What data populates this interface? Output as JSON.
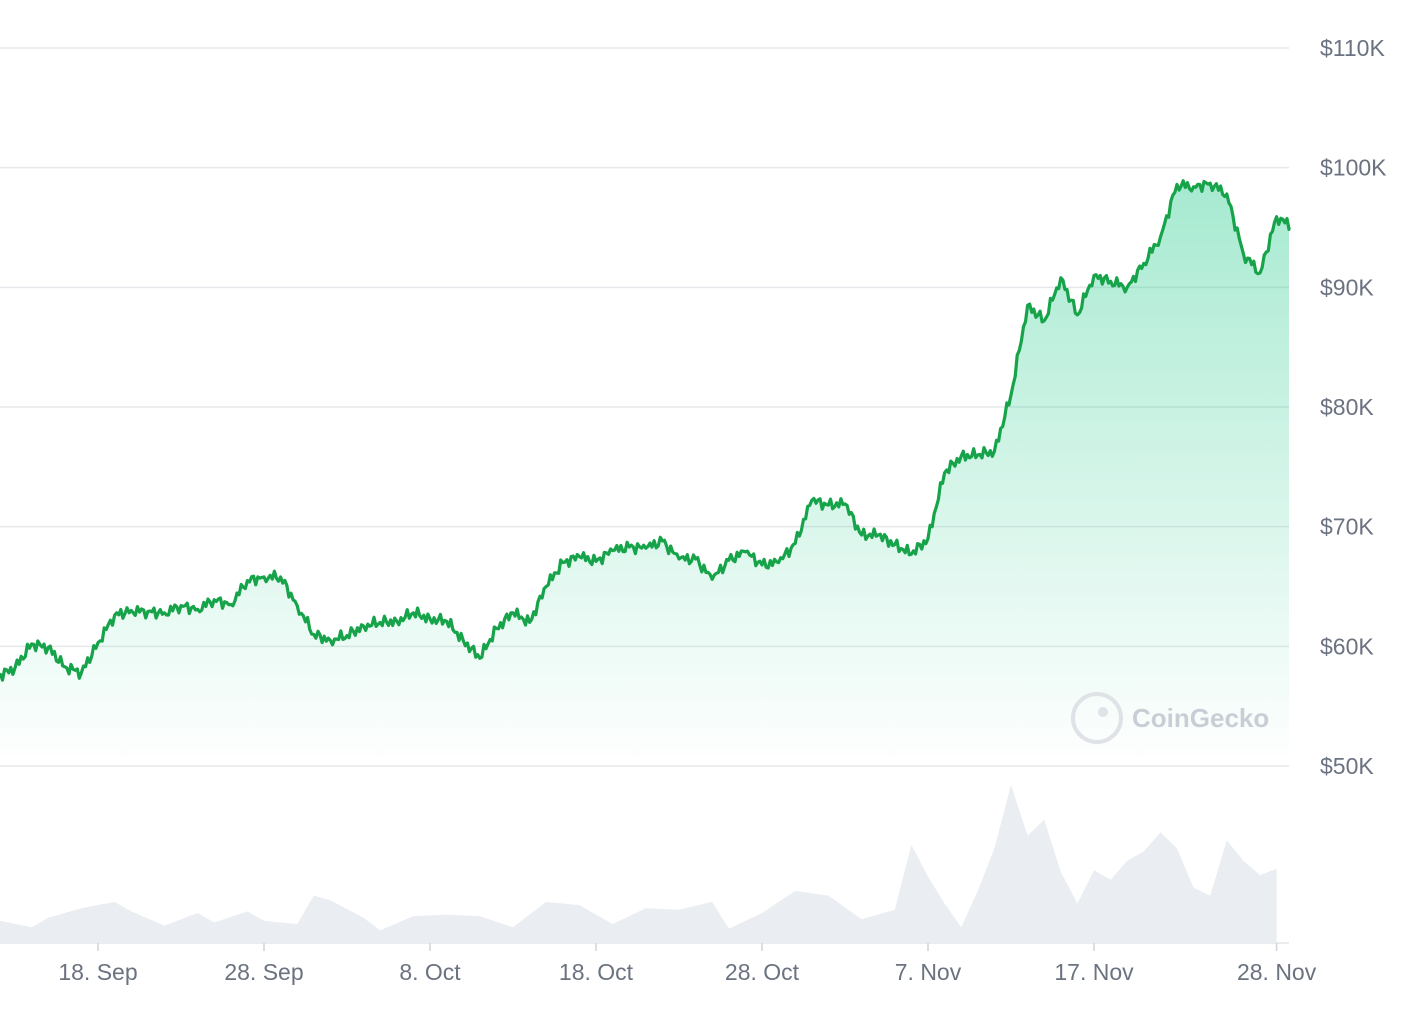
{
  "watermark": {
    "text": "CoinGecko"
  },
  "colors": {
    "line": "#16a34a",
    "area_top": "#16c784",
    "grid": "#e6e8eb",
    "volume": "#eaedf1",
    "tick_text": "#6b7280"
  },
  "chart_data": {
    "type": "line",
    "xlabel": "",
    "ylabel": "",
    "ylim": [
      50000,
      110000
    ],
    "y_ticks": [
      {
        "value": 110000,
        "label": "$110K"
      },
      {
        "value": 100000,
        "label": "$100K"
      },
      {
        "value": 90000,
        "label": "$90K"
      },
      {
        "value": 80000,
        "label": "$80K"
      },
      {
        "value": 70000,
        "label": "$70K"
      },
      {
        "value": 60000,
        "label": "$60K"
      },
      {
        "value": 50000,
        "label": "$50K"
      }
    ],
    "x_range": [
      "2024-09-12",
      "2024-11-28"
    ],
    "x_ticks": [
      {
        "date": "2024-09-18",
        "label": "18. Sep"
      },
      {
        "date": "2024-09-28",
        "label": "28. Sep"
      },
      {
        "date": "2024-10-08",
        "label": "8. Oct"
      },
      {
        "date": "2024-10-18",
        "label": "18. Oct"
      },
      {
        "date": "2024-10-28",
        "label": "28. Oct"
      },
      {
        "date": "2024-11-07",
        "label": "7. Nov"
      },
      {
        "date": "2024-11-17",
        "label": "17. Nov"
      },
      {
        "date": "2024-11-28",
        "label": "28. Nov"
      }
    ],
    "series": [
      {
        "points": [
          [
            "2024-09-12",
            57500
          ],
          [
            "2024-09-13",
            58200
          ],
          [
            "2024-09-14",
            60200
          ],
          [
            "2024-09-15",
            59900
          ],
          [
            "2024-09-16",
            58300
          ],
          [
            "2024-09-17",
            57800
          ],
          [
            "2024-09-18",
            60300
          ],
          [
            "2024-09-19",
            62600
          ],
          [
            "2024-09-20",
            63000
          ],
          [
            "2024-09-21",
            62900
          ],
          [
            "2024-09-22",
            62800
          ],
          [
            "2024-09-23",
            63400
          ],
          [
            "2024-09-24",
            63100
          ],
          [
            "2024-09-25",
            63900
          ],
          [
            "2024-09-26",
            63500
          ],
          [
            "2024-09-27",
            65500
          ],
          [
            "2024-09-28",
            65800
          ],
          [
            "2024-09-29",
            65800
          ],
          [
            "2024-09-30",
            63400
          ],
          [
            "2024-10-01",
            61000
          ],
          [
            "2024-10-02",
            60500
          ],
          [
            "2024-10-03",
            60900
          ],
          [
            "2024-10-04",
            61700
          ],
          [
            "2024-10-05",
            62000
          ],
          [
            "2024-10-06",
            62100
          ],
          [
            "2024-10-07",
            62800
          ],
          [
            "2024-10-08",
            62300
          ],
          [
            "2024-10-09",
            62100
          ],
          [
            "2024-10-10",
            60500
          ],
          [
            "2024-10-11",
            59000
          ],
          [
            "2024-10-12",
            61500
          ],
          [
            "2024-10-13",
            62800
          ],
          [
            "2024-10-14",
            62000
          ],
          [
            "2024-10-15",
            65000
          ],
          [
            "2024-10-16",
            67000
          ],
          [
            "2024-10-17",
            67500
          ],
          [
            "2024-10-18",
            67100
          ],
          [
            "2024-10-19",
            68000
          ],
          [
            "2024-10-20",
            68300
          ],
          [
            "2024-10-21",
            68200
          ],
          [
            "2024-10-22",
            68800
          ],
          [
            "2024-10-23",
            67300
          ],
          [
            "2024-10-24",
            67300
          ],
          [
            "2024-10-25",
            65600
          ],
          [
            "2024-10-26",
            67200
          ],
          [
            "2024-10-27",
            67900
          ],
          [
            "2024-10-28",
            66800
          ],
          [
            "2024-10-29",
            67000
          ],
          [
            "2024-10-30",
            68600
          ],
          [
            "2024-10-31",
            72200
          ],
          [
            "2024-11-01",
            71800
          ],
          [
            "2024-11-02",
            71900
          ],
          [
            "2024-11-03",
            69300
          ],
          [
            "2024-11-04",
            69300
          ],
          [
            "2024-11-05",
            68500
          ],
          [
            "2024-11-06",
            67700
          ],
          [
            "2024-11-07",
            69000
          ],
          [
            "2024-11-08",
            74500
          ],
          [
            "2024-11-09",
            75900
          ],
          [
            "2024-11-10",
            76000
          ],
          [
            "2024-11-11",
            76300
          ],
          [
            "2024-11-12",
            81000
          ],
          [
            "2024-11-13",
            88500
          ],
          [
            "2024-11-14",
            87200
          ],
          [
            "2024-11-15",
            90800
          ],
          [
            "2024-11-16",
            87700
          ],
          [
            "2024-11-17",
            91000
          ],
          [
            "2024-11-18",
            90500
          ],
          [
            "2024-11-19",
            90000
          ],
          [
            "2024-11-20",
            92000
          ],
          [
            "2024-11-21",
            94200
          ],
          [
            "2024-11-22",
            98600
          ],
          [
            "2024-11-23",
            98400
          ],
          [
            "2024-11-24",
            98700
          ],
          [
            "2024-11-25",
            97800
          ],
          [
            "2024-11-26",
            92800
          ],
          [
            "2024-11-27",
            91200
          ],
          [
            "2024-11-28",
            95900
          ],
          [
            "2024-11-29",
            95000
          ]
        ]
      }
    ],
    "volume": {
      "ymax": 100,
      "points": [
        [
          "2024-09-12",
          14
        ],
        [
          "2024-09-14",
          10
        ],
        [
          "2024-09-15",
          16
        ],
        [
          "2024-09-17",
          22
        ],
        [
          "2024-09-19",
          26
        ],
        [
          "2024-09-20",
          20
        ],
        [
          "2024-09-22",
          11
        ],
        [
          "2024-09-24",
          19
        ],
        [
          "2024-09-25",
          13
        ],
        [
          "2024-09-27",
          20
        ],
        [
          "2024-09-28",
          14
        ],
        [
          "2024-09-30",
          12
        ],
        [
          "2024-10-01",
          30
        ],
        [
          "2024-10-02",
          27
        ],
        [
          "2024-10-04",
          16
        ],
        [
          "2024-10-05",
          8
        ],
        [
          "2024-10-07",
          17
        ],
        [
          "2024-10-09",
          18
        ],
        [
          "2024-10-11",
          17
        ],
        [
          "2024-10-13",
          10
        ],
        [
          "2024-10-15",
          26
        ],
        [
          "2024-10-17",
          24
        ],
        [
          "2024-10-19",
          12
        ],
        [
          "2024-10-21",
          22
        ],
        [
          "2024-10-23",
          21
        ],
        [
          "2024-10-25",
          26
        ],
        [
          "2024-10-26",
          9
        ],
        [
          "2024-10-28",
          19
        ],
        [
          "2024-10-30",
          33
        ],
        [
          "2024-11-01",
          30
        ],
        [
          "2024-11-03",
          15
        ],
        [
          "2024-11-05",
          21
        ],
        [
          "2024-11-06",
          62
        ],
        [
          "2024-11-07",
          42
        ],
        [
          "2024-11-08",
          25
        ],
        [
          "2024-11-09",
          10
        ],
        [
          "2024-11-10",
          33
        ],
        [
          "2024-11-11",
          60
        ],
        [
          "2024-11-12",
          100
        ],
        [
          "2024-11-13",
          68
        ],
        [
          "2024-11-14",
          78
        ],
        [
          "2024-11-15",
          45
        ],
        [
          "2024-11-16",
          25
        ],
        [
          "2024-11-17",
          46
        ],
        [
          "2024-11-18",
          40
        ],
        [
          "2024-11-19",
          52
        ],
        [
          "2024-11-20",
          58
        ],
        [
          "2024-11-21",
          70
        ],
        [
          "2024-11-22",
          60
        ],
        [
          "2024-11-23",
          35
        ],
        [
          "2024-11-24",
          30
        ],
        [
          "2024-11-25",
          65
        ],
        [
          "2024-11-26",
          52
        ],
        [
          "2024-11-27",
          43
        ],
        [
          "2024-11-28",
          47
        ]
      ]
    }
  }
}
